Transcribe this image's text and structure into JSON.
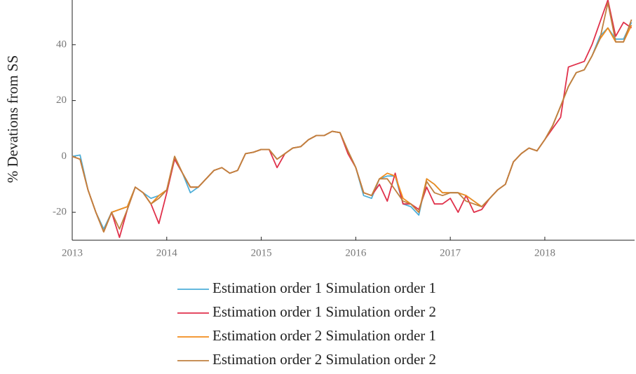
{
  "chart_data": {
    "type": "line",
    "y_label": "% Devations from SS",
    "xlim": [
      2013,
      2018.95
    ],
    "xticks": [
      2013,
      2014,
      2015,
      2016,
      2017,
      2018
    ],
    "ylim": [
      -30,
      56
    ],
    "yticks": [
      -20,
      0,
      20,
      40
    ],
    "x": [
      2013,
      2013.083,
      2013.167,
      2013.25,
      2013.333,
      2013.417,
      2013.5,
      2013.583,
      2013.667,
      2013.75,
      2013.833,
      2013.917,
      2014,
      2014.083,
      2014.167,
      2014.25,
      2014.333,
      2014.417,
      2014.5,
      2014.583,
      2014.667,
      2014.75,
      2014.833,
      2014.917,
      2015,
      2015.083,
      2015.167,
      2015.25,
      2015.333,
      2015.417,
      2015.5,
      2015.583,
      2015.667,
      2015.75,
      2015.833,
      2015.917,
      2016,
      2016.083,
      2016.167,
      2016.25,
      2016.333,
      2016.417,
      2016.5,
      2016.583,
      2016.667,
      2016.75,
      2016.833,
      2016.917,
      2017,
      2017.083,
      2017.167,
      2017.25,
      2017.333,
      2017.417,
      2017.5,
      2017.583,
      2017.667,
      2017.75,
      2017.833,
      2017.917,
      2018,
      2018.083,
      2018.167,
      2018.25,
      2018.333,
      2018.417,
      2018.5,
      2018.583,
      2018.667,
      2018.75,
      2018.833,
      2018.917
    ],
    "series": [
      {
        "name": "Estimation order 1 Simulation order 1",
        "color": "#4daed8",
        "values": [
          0,
          0.5,
          -12,
          -20,
          -26,
          -20,
          -19,
          -18,
          -11,
          -13,
          -15,
          -14,
          -12,
          -1,
          -6,
          -13,
          -11,
          -8,
          -5,
          -4,
          -6,
          -5,
          1,
          1.5,
          2.5,
          2.5,
          -1,
          1,
          3,
          3.5,
          6,
          7.5,
          7.5,
          9,
          8.5,
          2,
          -4,
          -14,
          -15,
          -8,
          -7,
          -7,
          -17,
          -18,
          -21,
          -8,
          -10,
          -13,
          -13,
          -13,
          -14,
          -16,
          -18,
          -15,
          -12,
          -10,
          -2,
          1,
          3,
          2,
          6,
          11,
          18,
          25,
          30,
          31,
          36,
          43,
          46,
          42,
          42,
          48
        ]
      },
      {
        "name": "Estimation order 1 Simulation order 2",
        "color": "#e0314b",
        "values": [
          0,
          -1,
          -12,
          -20,
          -27,
          -20,
          -29,
          -19,
          -11,
          -13,
          -17,
          -24,
          -13,
          -1,
          -6,
          -11,
          -11,
          -8,
          -5,
          -4,
          -6,
          -5,
          1,
          1.5,
          2.5,
          2.5,
          -4,
          1,
          3,
          3.5,
          6,
          7.5,
          7.5,
          9,
          8.5,
          1,
          -4,
          -13,
          -14,
          -10,
          -16,
          -6,
          -17,
          -17,
          -19,
          -11,
          -17,
          -17,
          -15,
          -20,
          -14,
          -20,
          -19,
          -15,
          -12,
          -10,
          -2,
          1,
          3,
          2,
          6,
          10,
          14,
          32,
          33,
          34,
          40,
          48,
          56,
          43,
          48,
          46
        ]
      },
      {
        "name": "Estimation order 2 Simulation order 1",
        "color": "#f28c1c",
        "values": [
          0,
          -1,
          -12,
          -20,
          -27,
          -20,
          -19,
          -18,
          -11,
          -13,
          -17,
          -14,
          -12,
          0,
          -6,
          -11,
          -11,
          -8,
          -5,
          -4,
          -6,
          -5,
          1,
          1.5,
          2.5,
          2.5,
          -1,
          1,
          3,
          3.5,
          6,
          7.5,
          7.5,
          9,
          8.5,
          2,
          -4,
          -13,
          -14,
          -8,
          -6,
          -7,
          -15,
          -17,
          -20,
          -8,
          -10,
          -13,
          -13,
          -13,
          -14,
          -16,
          -18,
          -15,
          -12,
          -10,
          -2,
          1,
          3,
          2,
          6,
          11,
          18,
          25,
          30,
          31,
          36,
          42,
          46,
          41,
          41,
          47
        ]
      },
      {
        "name": "Estimation order 2 Simulation order 2",
        "color": "#c08040",
        "values": [
          0,
          -1,
          -12,
          -20,
          -27,
          -20,
          -26,
          -19,
          -11,
          -13,
          -17,
          -15,
          -12,
          0,
          -6,
          -11,
          -11,
          -8,
          -5,
          -4,
          -6,
          -5,
          1,
          1.5,
          2.5,
          2.5,
          -1,
          1,
          3,
          3.5,
          6,
          7.5,
          7.5,
          9,
          8.5,
          2,
          -4,
          -13,
          -14,
          -8,
          -8,
          -12,
          -16,
          -17,
          -20,
          -9,
          -13,
          -14,
          -13,
          -13,
          -16,
          -17,
          -18,
          -15,
          -12,
          -10,
          -2,
          1,
          3,
          2,
          6,
          11,
          18,
          25,
          30,
          31,
          36,
          42,
          55,
          41,
          41,
          49
        ]
      }
    ]
  }
}
